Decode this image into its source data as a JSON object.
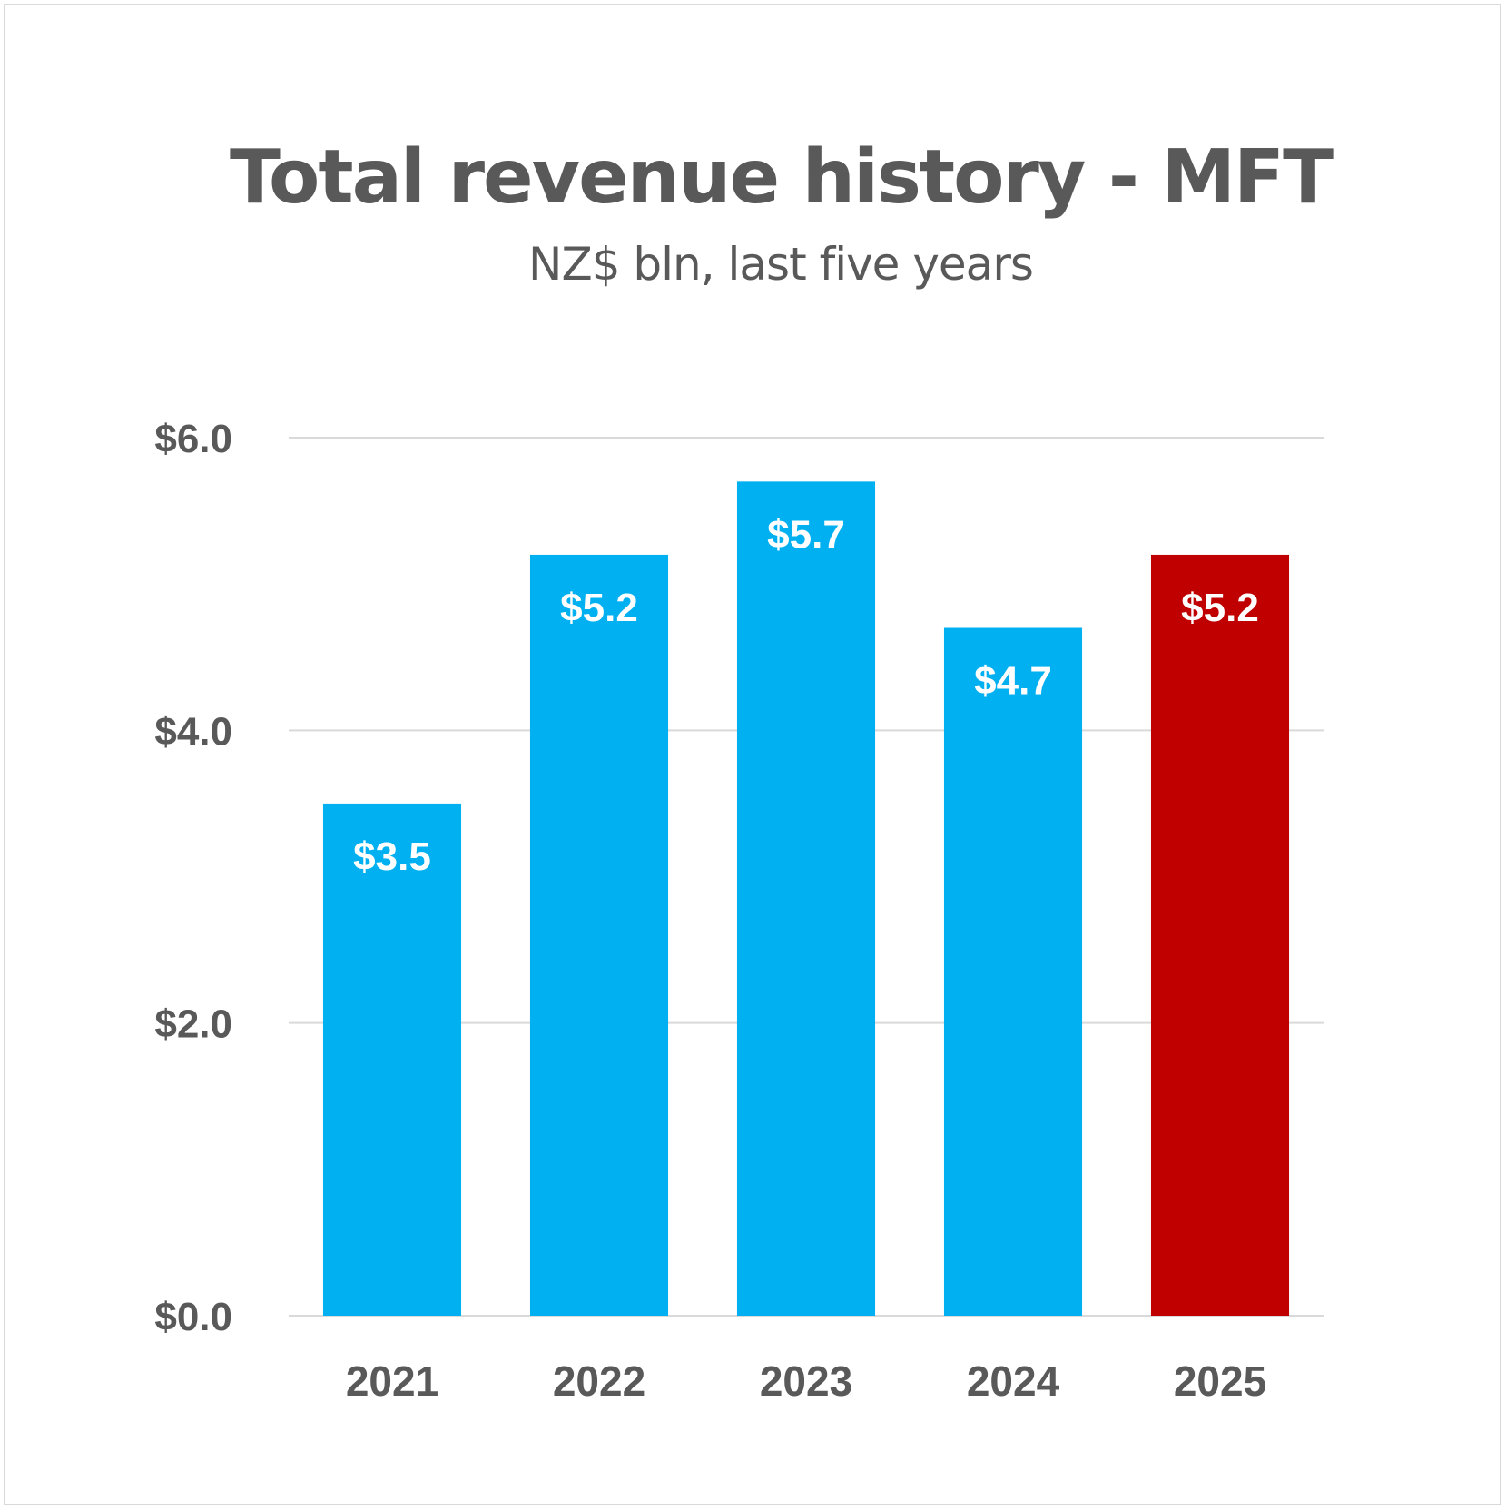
{
  "chart_data": {
    "type": "bar",
    "title": "Total revenue history - MFT",
    "subtitle": "NZ$ bln, last five years",
    "categories": [
      "2021",
      "2022",
      "2023",
      "2024",
      "2025"
    ],
    "values": [
      3.5,
      5.2,
      5.7,
      4.7,
      5.2
    ],
    "data_labels": [
      "$3.5",
      "$5.2",
      "$5.7",
      "$4.7",
      "$5.2"
    ],
    "ylim": [
      0,
      6
    ],
    "yticks": [
      0,
      2,
      4,
      6
    ],
    "ytick_labels": [
      "$0.0",
      "$2.0",
      "$4.0",
      "$6.0"
    ],
    "xlabel": "",
    "ylabel": "",
    "grid": true,
    "legend": "none",
    "colors": [
      "#00b0f0",
      "#00b0f0",
      "#00b0f0",
      "#00b0f0",
      "#c00000"
    ]
  }
}
